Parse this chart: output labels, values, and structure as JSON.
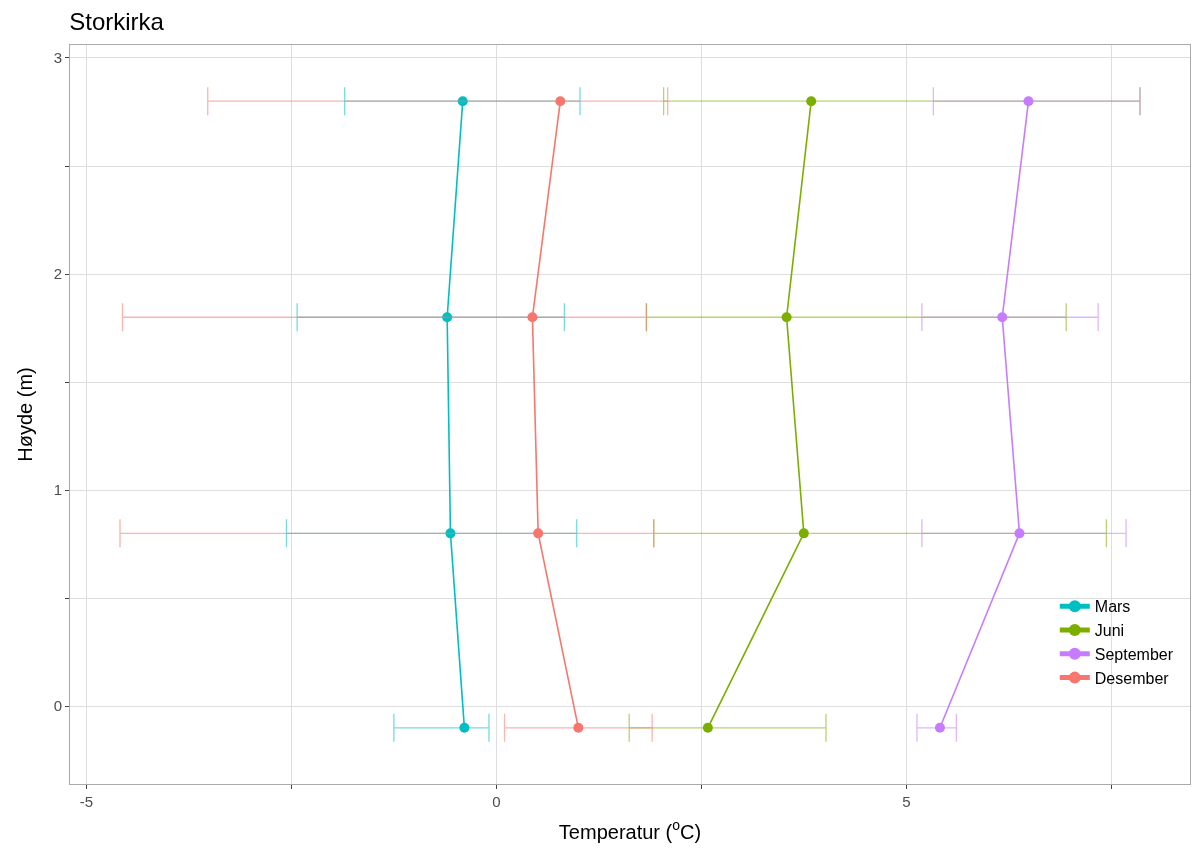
{
  "chart_data": {
    "type": "line",
    "title": "Storkirka",
    "xlabel": "Temperatur ($^{o}$C)",
    "ylabel": "Høyde (m)",
    "xlim": [
      -5.2,
      8.46
    ],
    "xticks": [
      -5,
      {
        "value": -2.5,
        "label": null
      },
      0,
      {
        "value": 2.5,
        "label": null
      },
      5,
      {
        "value": 7.5,
        "label": null
      }
    ],
    "ylim": [
      -0.36,
      3.06
    ],
    "yticks": [
      0,
      {
        "value": 0.5,
        "label": null
      },
      1,
      {
        "value": 1.5,
        "label": null
      },
      2,
      {
        "value": 2.5,
        "label": null
      },
      3
    ],
    "grid": true,
    "legend": "bottom right",
    "marker": "circle",
    "line_style": "solid",
    "series": [
      {
        "name": "Mars",
        "color": "#00bfc4",
        "x": [
          -0.39,
          -0.56,
          -0.6,
          -0.41
        ],
        "values": [
          -0.1,
          0.8,
          1.8,
          2.8
        ],
        "xerrors": [
          [
            -1.25,
            -0.09
          ],
          [
            -2.56,
            0.98
          ],
          [
            -2.43,
            0.83
          ],
          [
            -1.85,
            1.02
          ]
        ]
      },
      {
        "name": "Juni",
        "color": "#7cae00",
        "x": [
          2.58,
          3.75,
          3.54,
          3.84
        ],
        "values": [
          -0.1,
          0.8,
          1.8,
          2.8
        ],
        "xerrors": [
          [
            1.62,
            4.02
          ],
          [
            1.92,
            7.44
          ],
          [
            1.83,
            6.95
          ],
          [
            2.04,
            7.85
          ]
        ]
      },
      {
        "name": "September",
        "color": "#c77cff",
        "x": [
          5.41,
          6.38,
          6.17,
          6.49
        ],
        "values": [
          -0.1,
          0.8,
          1.8,
          2.8
        ],
        "xerrors": [
          [
            5.13,
            5.61
          ],
          [
            5.19,
            7.68
          ],
          [
            5.19,
            7.34
          ],
          [
            5.33,
            7.85
          ]
        ]
      },
      {
        "name": "Desember",
        "color": "#f8766d",
        "x": [
          1.0,
          0.51,
          0.44,
          0.78
        ],
        "values": [
          -0.1,
          0.8,
          1.8,
          2.8
        ],
        "xerrors": [
          [
            0.1,
            1.9
          ],
          [
            -4.59,
            1.92
          ],
          [
            -4.56,
            1.83
          ],
          [
            -3.52,
            2.09
          ]
        ]
      }
    ]
  }
}
